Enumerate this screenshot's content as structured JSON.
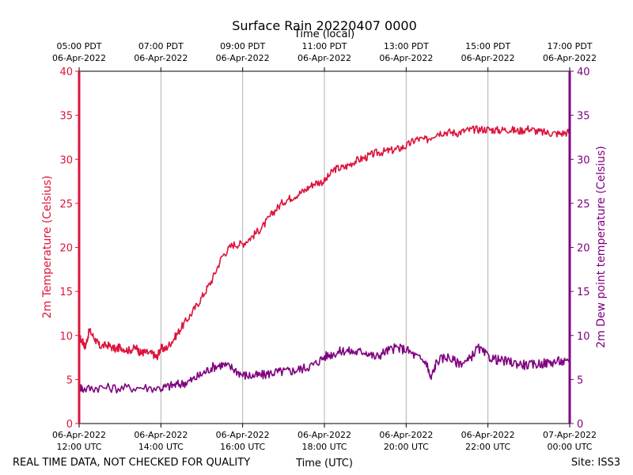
{
  "chart_data": {
    "type": "line",
    "title": "Surface Rain 20220407 0000",
    "top_axis_label": "Time (local)",
    "xlabel": "Time (UTC)",
    "ylabel_left": "2m Temperature (Celsius)",
    "ylabel_right": "2m Dew point temperature (Celsius)",
    "ylim": [
      0,
      40
    ],
    "y_ticks": [
      "0",
      "5",
      "10",
      "15",
      "20",
      "25",
      "30",
      "35",
      "40"
    ],
    "x_range_hours": [
      12,
      24
    ],
    "grid": "vertical",
    "bottom_ticks": [
      {
        "hour": 12,
        "date": "06-Apr-2022",
        "time": "12:00 UTC"
      },
      {
        "hour": 14,
        "date": "06-Apr-2022",
        "time": "14:00 UTC"
      },
      {
        "hour": 16,
        "date": "06-Apr-2022",
        "time": "16:00 UTC"
      },
      {
        "hour": 18,
        "date": "06-Apr-2022",
        "time": "18:00 UTC"
      },
      {
        "hour": 20,
        "date": "06-Apr-2022",
        "time": "20:00 UTC"
      },
      {
        "hour": 22,
        "date": "06-Apr-2022",
        "time": "22:00 UTC"
      },
      {
        "hour": 24,
        "date": "07-Apr-2022",
        "time": "00:00 UTC"
      }
    ],
    "top_ticks": [
      {
        "hour": 12,
        "time": "05:00 PDT",
        "date": "06-Apr-2022"
      },
      {
        "hour": 14,
        "time": "07:00 PDT",
        "date": "06-Apr-2022"
      },
      {
        "hour": 16,
        "time": "09:00 PDT",
        "date": "06-Apr-2022"
      },
      {
        "hour": 18,
        "time": "11:00 PDT",
        "date": "06-Apr-2022"
      },
      {
        "hour": 20,
        "time": "13:00 PDT",
        "date": "06-Apr-2022"
      },
      {
        "hour": 22,
        "time": "15:00 PDT",
        "date": "06-Apr-2022"
      },
      {
        "hour": 24,
        "time": "17:00 PDT",
        "date": "06-Apr-2022"
      }
    ],
    "series": [
      {
        "name": "2m Temperature",
        "color": "#dc143c",
        "x": [
          12.0,
          12.1,
          12.15,
          12.25,
          12.4,
          12.5,
          12.7,
          12.9,
          13.0,
          13.2,
          13.4,
          13.5,
          13.6,
          13.8,
          13.9,
          14.0,
          14.1,
          14.3,
          14.5,
          14.75,
          15.0,
          15.25,
          15.5,
          15.75,
          16.0,
          16.25,
          16.5,
          16.75,
          17.0,
          17.25,
          17.5,
          17.75,
          18.0,
          18.25,
          18.5,
          18.75,
          19.0,
          19.25,
          19.5,
          19.75,
          20.0,
          20.25,
          20.5,
          20.75,
          21.0,
          21.25,
          21.5,
          21.75,
          22.0,
          22.25,
          22.5,
          22.75,
          23.0,
          23.25,
          23.5,
          23.75,
          24.0
        ],
        "y": [
          9.8,
          9.2,
          8.7,
          10.6,
          9.5,
          8.8,
          8.9,
          8.4,
          8.7,
          8.3,
          8.6,
          8.0,
          8.1,
          7.9,
          7.5,
          8.6,
          8.4,
          9.5,
          10.9,
          12.5,
          14.3,
          16.3,
          19.0,
          20.3,
          20.4,
          21.3,
          22.4,
          24.0,
          25.2,
          25.8,
          26.4,
          27.3,
          27.5,
          28.9,
          29.1,
          29.8,
          30.2,
          30.7,
          30.9,
          31.1,
          31.5,
          32.3,
          32.2,
          33.0,
          33.1,
          33.0,
          33.3,
          33.4,
          33.4,
          33.3,
          33.4,
          33.2,
          33.5,
          33.1,
          33.0,
          32.9,
          33.1
        ]
      },
      {
        "name": "2m Dew point temperature",
        "color": "#800080",
        "x": [
          12.0,
          12.1,
          12.5,
          13.0,
          13.5,
          14.0,
          14.25,
          14.5,
          14.75,
          15.0,
          15.25,
          15.5,
          15.75,
          16.0,
          16.25,
          16.5,
          16.75,
          17.0,
          17.25,
          17.5,
          17.75,
          18.0,
          18.25,
          18.5,
          18.75,
          19.0,
          19.25,
          19.5,
          19.75,
          20.0,
          20.25,
          20.5,
          20.6,
          20.75,
          21.0,
          21.25,
          21.5,
          21.75,
          22.0,
          22.25,
          22.5,
          22.75,
          23.0,
          23.25,
          23.5,
          23.75,
          24.0
        ],
        "y": [
          4.3,
          3.9,
          4.1,
          4.0,
          4.1,
          4.0,
          4.3,
          4.5,
          4.9,
          5.6,
          6.4,
          6.7,
          6.3,
          5.5,
          5.4,
          5.5,
          5.8,
          5.9,
          6.0,
          6.3,
          6.7,
          7.6,
          8.0,
          8.3,
          8.1,
          8.2,
          7.5,
          8.2,
          8.6,
          8.4,
          7.6,
          6.9,
          5.0,
          7.1,
          7.6,
          6.9,
          7.0,
          8.6,
          7.6,
          7.2,
          7.0,
          6.8,
          6.6,
          6.8,
          6.9,
          7.1,
          6.8
        ]
      }
    ],
    "footer_left": "REAL TIME DATA, NOT CHECKED FOR QUALITY",
    "footer_right": "Site: ISS3"
  }
}
